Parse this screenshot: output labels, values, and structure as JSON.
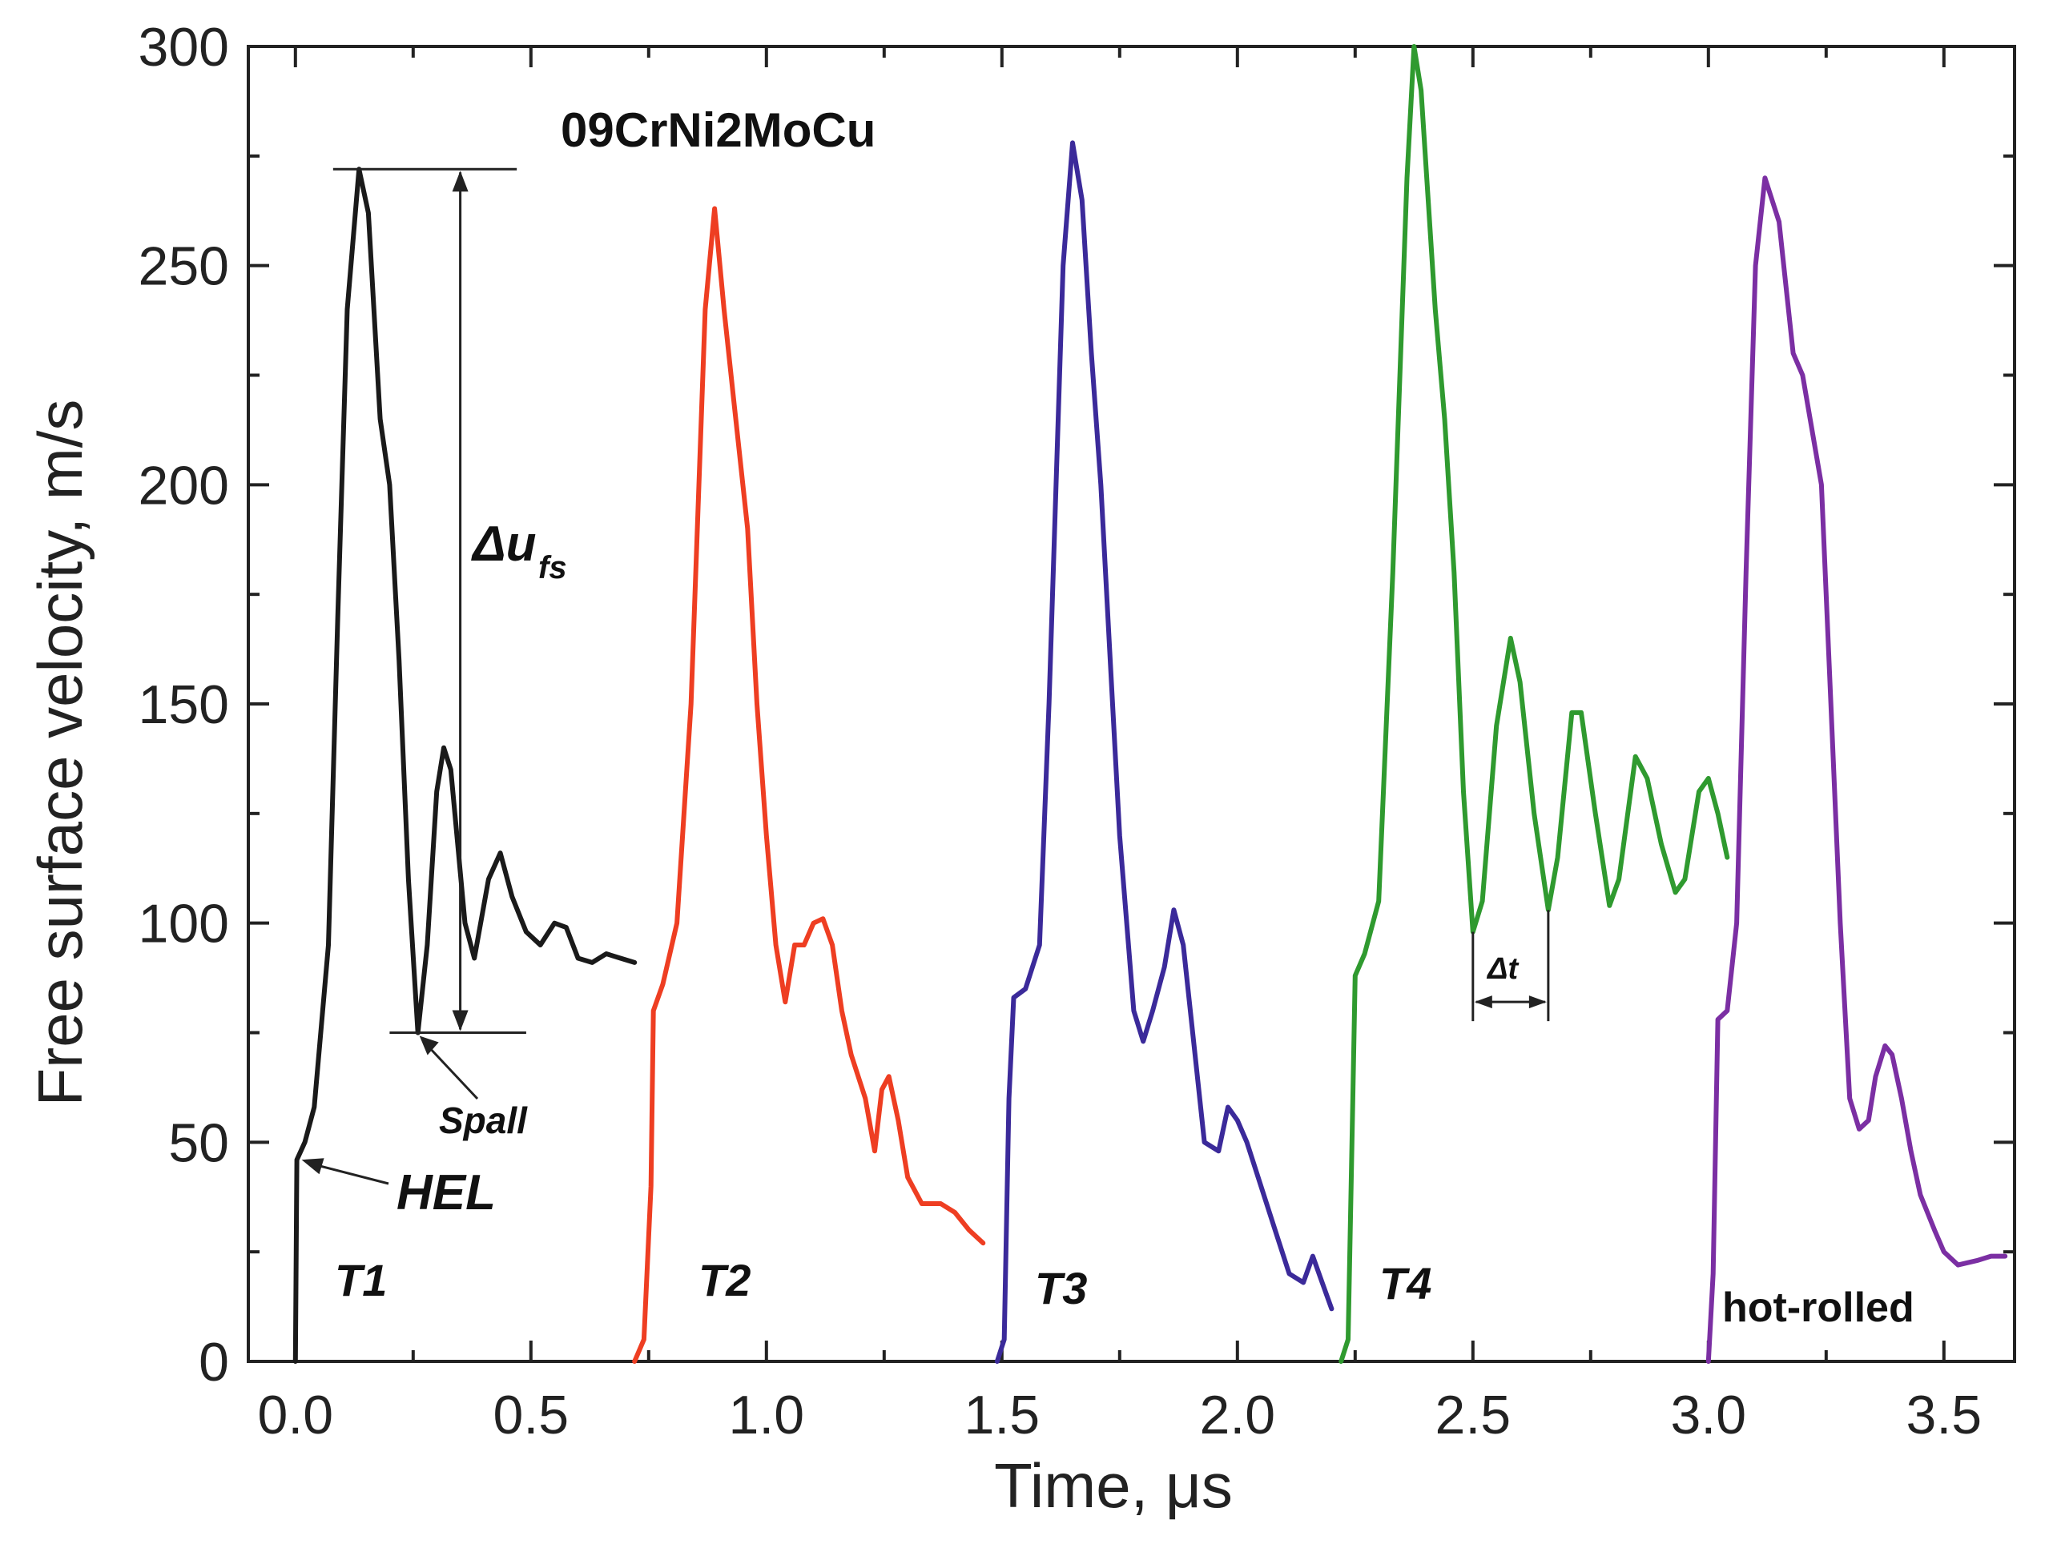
{
  "chart_data": {
    "type": "line",
    "title": "09CrNi2MoCu",
    "xlabel": "Time, μs",
    "ylabel": "Free surface velocity, m/s",
    "xlim": [
      -0.1,
      3.65
    ],
    "ylim": [
      0,
      300
    ],
    "xticks": [
      "0.0",
      "0.5",
      "1.0",
      "1.5",
      "2.0",
      "2.5",
      "3.0",
      "3.5"
    ],
    "xtick_values": [
      0.0,
      0.5,
      1.0,
      1.5,
      2.0,
      2.5,
      3.0,
      3.5
    ],
    "yticks": [
      "0",
      "50",
      "100",
      "150",
      "200",
      "250",
      "300"
    ],
    "ytick_values": [
      0,
      50,
      100,
      150,
      200,
      250,
      300
    ],
    "series": [
      {
        "name": "T1",
        "color": "#1a1a1a",
        "points": [
          [
            0.0,
            0
          ],
          [
            0.003,
            46
          ],
          [
            0.02,
            50
          ],
          [
            0.04,
            58
          ],
          [
            0.07,
            95
          ],
          [
            0.09,
            170
          ],
          [
            0.11,
            240
          ],
          [
            0.135,
            272
          ],
          [
            0.155,
            262
          ],
          [
            0.18,
            215
          ],
          [
            0.2,
            200
          ],
          [
            0.22,
            160
          ],
          [
            0.24,
            110
          ],
          [
            0.26,
            75
          ],
          [
            0.28,
            95
          ],
          [
            0.3,
            130
          ],
          [
            0.315,
            140
          ],
          [
            0.33,
            135
          ],
          [
            0.36,
            100
          ],
          [
            0.38,
            92
          ],
          [
            0.41,
            110
          ],
          [
            0.435,
            116
          ],
          [
            0.46,
            106
          ],
          [
            0.49,
            98
          ],
          [
            0.52,
            95
          ],
          [
            0.55,
            100
          ],
          [
            0.575,
            99
          ],
          [
            0.6,
            92
          ],
          [
            0.63,
            91
          ],
          [
            0.66,
            93
          ],
          [
            0.69,
            92
          ],
          [
            0.72,
            91
          ]
        ]
      },
      {
        "name": "T2",
        "color": "#ee3e22",
        "points": [
          [
            0.72,
            0
          ],
          [
            0.74,
            5
          ],
          [
            0.755,
            40
          ],
          [
            0.76,
            80
          ],
          [
            0.78,
            86
          ],
          [
            0.81,
            100
          ],
          [
            0.84,
            150
          ],
          [
            0.87,
            240
          ],
          [
            0.89,
            263
          ],
          [
            0.91,
            240
          ],
          [
            0.93,
            220
          ],
          [
            0.96,
            190
          ],
          [
            0.98,
            150
          ],
          [
            1.0,
            120
          ],
          [
            1.02,
            95
          ],
          [
            1.04,
            82
          ],
          [
            1.06,
            95
          ],
          [
            1.08,
            95
          ],
          [
            1.1,
            100
          ],
          [
            1.12,
            101
          ],
          [
            1.14,
            95
          ],
          [
            1.16,
            80
          ],
          [
            1.18,
            70
          ],
          [
            1.21,
            60
          ],
          [
            1.23,
            48
          ],
          [
            1.245,
            62
          ],
          [
            1.26,
            65
          ],
          [
            1.28,
            55
          ],
          [
            1.3,
            42
          ],
          [
            1.33,
            36
          ],
          [
            1.37,
            36
          ],
          [
            1.4,
            34
          ],
          [
            1.43,
            30
          ],
          [
            1.46,
            27
          ]
        ]
      },
      {
        "name": "T3",
        "color": "#3b2a9a",
        "points": [
          [
            1.49,
            0
          ],
          [
            1.505,
            5
          ],
          [
            1.515,
            60
          ],
          [
            1.525,
            83
          ],
          [
            1.55,
            85
          ],
          [
            1.58,
            95
          ],
          [
            1.6,
            150
          ],
          [
            1.63,
            250
          ],
          [
            1.65,
            278
          ],
          [
            1.67,
            265
          ],
          [
            1.69,
            230
          ],
          [
            1.71,
            200
          ],
          [
            1.73,
            160
          ],
          [
            1.75,
            120
          ],
          [
            1.78,
            80
          ],
          [
            1.8,
            73
          ],
          [
            1.82,
            80
          ],
          [
            1.845,
            90
          ],
          [
            1.865,
            103
          ],
          [
            1.885,
            95
          ],
          [
            1.91,
            70
          ],
          [
            1.93,
            50
          ],
          [
            1.96,
            48
          ],
          [
            1.98,
            58
          ],
          [
            2.0,
            55
          ],
          [
            2.02,
            50
          ],
          [
            2.05,
            40
          ],
          [
            2.08,
            30
          ],
          [
            2.11,
            20
          ],
          [
            2.14,
            18
          ],
          [
            2.16,
            24
          ],
          [
            2.18,
            18
          ],
          [
            2.2,
            12
          ]
        ]
      },
      {
        "name": "T4",
        "color": "#2f9a2f",
        "points": [
          [
            2.22,
            0
          ],
          [
            2.235,
            5
          ],
          [
            2.245,
            60
          ],
          [
            2.25,
            88
          ],
          [
            2.27,
            93
          ],
          [
            2.3,
            105
          ],
          [
            2.33,
            180
          ],
          [
            2.36,
            270
          ],
          [
            2.375,
            300
          ],
          [
            2.39,
            290
          ],
          [
            2.42,
            240
          ],
          [
            2.44,
            215
          ],
          [
            2.46,
            180
          ],
          [
            2.48,
            130
          ],
          [
            2.5,
            98
          ],
          [
            2.52,
            105
          ],
          [
            2.55,
            145
          ],
          [
            2.58,
            165
          ],
          [
            2.6,
            155
          ],
          [
            2.63,
            125
          ],
          [
            2.66,
            103
          ],
          [
            2.68,
            115
          ],
          [
            2.71,
            148
          ],
          [
            2.73,
            148
          ],
          [
            2.76,
            125
          ],
          [
            2.79,
            104
          ],
          [
            2.81,
            110
          ],
          [
            2.845,
            138
          ],
          [
            2.87,
            133
          ],
          [
            2.9,
            118
          ],
          [
            2.93,
            107
          ],
          [
            2.95,
            110
          ],
          [
            2.98,
            130
          ],
          [
            3.0,
            133
          ],
          [
            3.02,
            125
          ],
          [
            3.04,
            115
          ]
        ]
      },
      {
        "name": "hot-rolled",
        "color": "#7b2fa3",
        "points": [
          [
            3.0,
            0
          ],
          [
            3.01,
            20
          ],
          [
            3.02,
            78
          ],
          [
            3.04,
            80
          ],
          [
            3.06,
            100
          ],
          [
            3.08,
            180
          ],
          [
            3.1,
            250
          ],
          [
            3.12,
            270
          ],
          [
            3.15,
            260
          ],
          [
            3.18,
            230
          ],
          [
            3.2,
            225
          ],
          [
            3.24,
            200
          ],
          [
            3.26,
            150
          ],
          [
            3.28,
            100
          ],
          [
            3.3,
            60
          ],
          [
            3.32,
            53
          ],
          [
            3.34,
            55
          ],
          [
            3.355,
            65
          ],
          [
            3.375,
            72
          ],
          [
            3.39,
            70
          ],
          [
            3.41,
            60
          ],
          [
            3.43,
            48
          ],
          [
            3.45,
            38
          ],
          [
            3.48,
            30
          ],
          [
            3.5,
            25
          ],
          [
            3.53,
            22
          ],
          [
            3.57,
            23
          ],
          [
            3.6,
            24
          ],
          [
            3.63,
            24
          ]
        ]
      }
    ],
    "annotations": {
      "hel": "HEL",
      "spall": "Spall",
      "delta_u_main": "Δu",
      "delta_u_sub": "fs",
      "delta_t": "Δt"
    },
    "annotation_values": {
      "delta_u_top": 272,
      "delta_u_bottom": 75,
      "delta_u_time": 0.35,
      "hel_point": [
        0.003,
        46
      ],
      "spall_point": [
        0.26,
        75
      ],
      "delta_t_start": 2.5,
      "delta_t_end": 2.66,
      "delta_t_level": 82
    },
    "series_labels": {
      "T1": "T1",
      "T2": "T2",
      "T3": "T3",
      "T4": "T4",
      "hot_rolled": "hot-rolled"
    }
  }
}
